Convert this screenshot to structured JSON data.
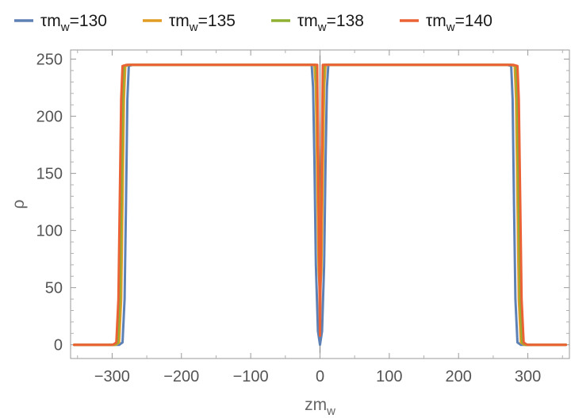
{
  "chart_data": {
    "type": "line",
    "title": "",
    "xlabel": "zm",
    "xlabel_sub": "w",
    "ylabel": "ρ",
    "xlim": [
      -360,
      360
    ],
    "ylim": [
      -12,
      258
    ],
    "xticks": [
      -300,
      -200,
      -100,
      0,
      100,
      200,
      300
    ],
    "yticks": [
      0,
      50,
      100,
      150,
      200,
      250
    ],
    "xtick_labels": [
      "−300",
      "−200",
      "−100",
      "0",
      "100",
      "200",
      "300"
    ],
    "ytick_labels": [
      "0",
      "50",
      "100",
      "150",
      "200",
      "250"
    ],
    "grid": false,
    "frame": true,
    "legend_position": "top",
    "series": [
      {
        "name": "τm_w=130",
        "legend_prefix": "τm",
        "legend_sub": "w",
        "legend_suffix": "=130",
        "color": "#5e81b5",
        "x": [
          -355,
          -290,
          -285,
          -282,
          -280,
          -278,
          -276,
          -270,
          -12,
          -10,
          -8,
          -6,
          -3,
          0,
          3,
          6,
          8,
          10,
          12,
          270,
          276,
          278,
          280,
          282,
          285,
          290,
          355
        ],
        "y": [
          0,
          0,
          2,
          40,
          125,
          215,
          244,
          245,
          245,
          225,
          160,
          70,
          12,
          0,
          12,
          70,
          160,
          225,
          245,
          245,
          244,
          215,
          125,
          40,
          2,
          0,
          0
        ]
      },
      {
        "name": "τm_w=135",
        "legend_prefix": "τm",
        "legend_sub": "w",
        "legend_suffix": "=135",
        "color": "#e19c24",
        "x": [
          -355,
          -295,
          -290,
          -287,
          -285,
          -283,
          -281,
          -275,
          -8,
          -6,
          -4,
          -2,
          0,
          2,
          4,
          6,
          8,
          275,
          281,
          283,
          285,
          287,
          290,
          295,
          355
        ],
        "y": [
          0,
          0,
          2,
          40,
          125,
          215,
          244,
          245,
          245,
          225,
          150,
          65,
          45,
          65,
          150,
          225,
          245,
          245,
          244,
          215,
          125,
          40,
          2,
          0,
          0
        ]
      },
      {
        "name": "τm_w=138",
        "legend_prefix": "τm",
        "legend_sub": "w",
        "legend_suffix": "=138",
        "color": "#8fb032",
        "x": [
          -355,
          -297,
          -292,
          -289,
          -287,
          -285,
          -283,
          -277,
          -6,
          -4,
          -2,
          0,
          2,
          4,
          6,
          277,
          283,
          285,
          287,
          289,
          292,
          297,
          355
        ],
        "y": [
          0,
          0,
          2,
          40,
          125,
          215,
          244,
          245,
          245,
          220,
          140,
          75,
          140,
          220,
          245,
          245,
          244,
          215,
          125,
          40,
          2,
          0,
          0
        ]
      },
      {
        "name": "τm_w=140",
        "legend_prefix": "τm",
        "legend_sub": "w",
        "legend_suffix": "=140",
        "color": "#eb6235",
        "x": [
          -355,
          -299,
          -294,
          -291,
          -289,
          -287,
          -285,
          -279,
          -4,
          -2,
          0,
          2,
          4,
          279,
          285,
          287,
          289,
          291,
          294,
          299,
          355
        ],
        "y": [
          0,
          0,
          2,
          40,
          125,
          215,
          244,
          245,
          245,
          120,
          8,
          120,
          245,
          245,
          244,
          215,
          125,
          40,
          2,
          0,
          0
        ]
      }
    ]
  }
}
